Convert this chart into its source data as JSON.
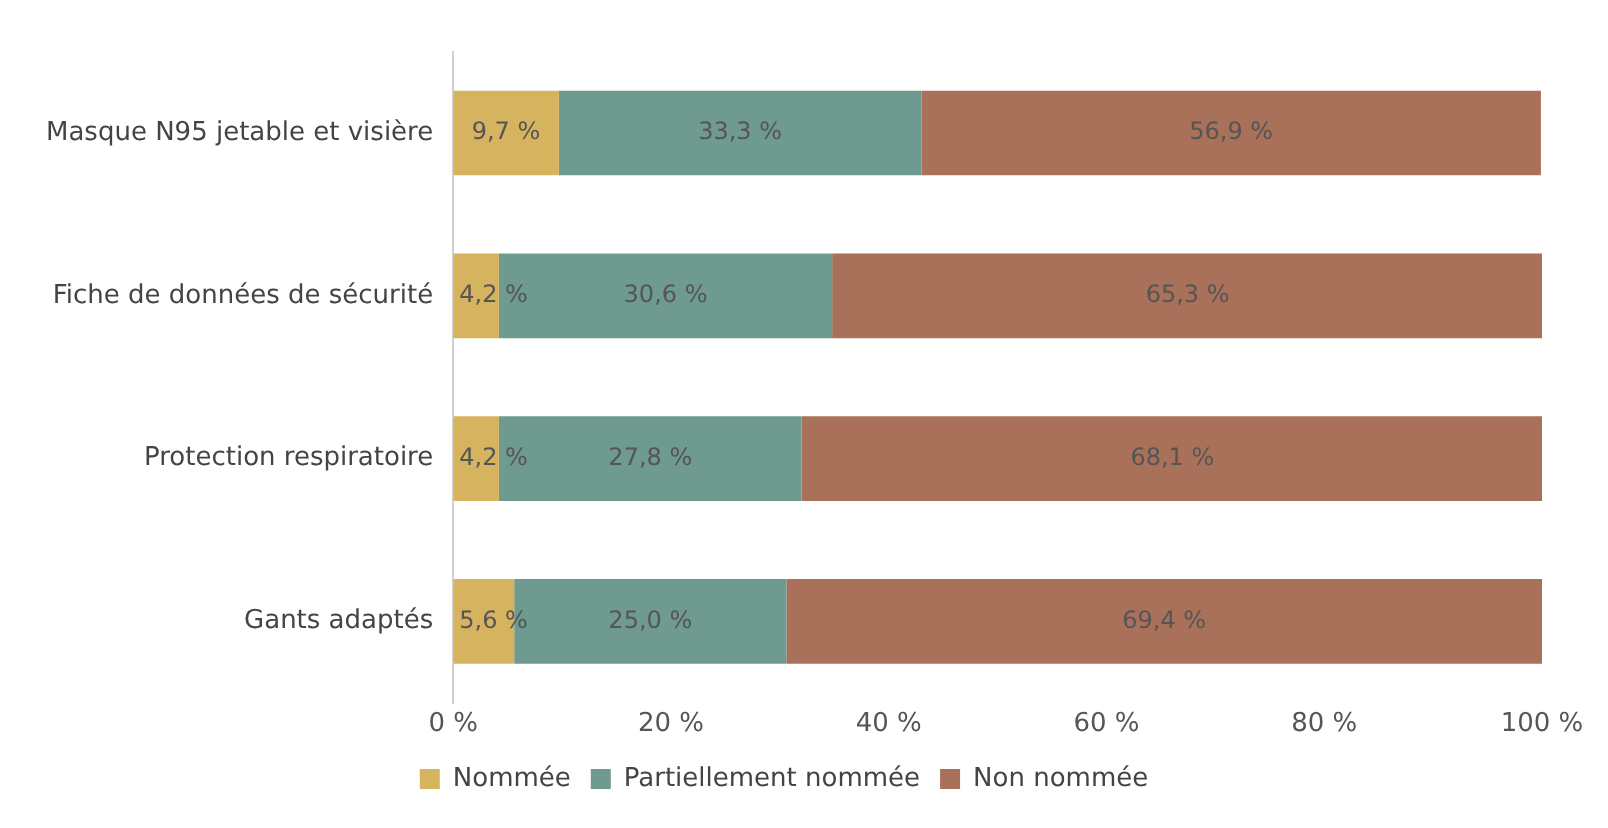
{
  "chart_data": {
    "type": "bar",
    "orientation": "horizontal",
    "stacked": true,
    "categories": [
      "Masque N95 jetable et visière",
      "Fiche de données de sécurité",
      "Protection respiratoire",
      "Gants adaptés"
    ],
    "series": [
      {
        "name": "Nommée",
        "color": "#d6b45f",
        "values": [
          9.7,
          4.2,
          4.2,
          5.6
        ],
        "value_labels": [
          "9,7 %",
          "4,2 %",
          "4,2 %",
          "5,6 %"
        ]
      },
      {
        "name": "Partiellement nommée",
        "color": "#6f9a8f",
        "values": [
          33.3,
          30.6,
          27.8,
          25.0
        ],
        "value_labels": [
          "33,3 %",
          "30,6 %",
          "27,8 %",
          "25,0 %"
        ]
      },
      {
        "name": "Non nommée",
        "color": "#a9705a",
        "values": [
          56.9,
          65.3,
          68.1,
          69.4
        ],
        "value_labels": [
          "56,9 %",
          "65,3 %",
          "68,1 %",
          "69,4 %"
        ]
      }
    ],
    "xlim": [
      0,
      100
    ],
    "xticks": [
      {
        "value": 0,
        "label": "0 %"
      },
      {
        "value": 20,
        "label": "20 %"
      },
      {
        "value": 40,
        "label": "40 %"
      },
      {
        "value": 60,
        "label": "60 %"
      },
      {
        "value": 80,
        "label": "80 %"
      },
      {
        "value": 100,
        "label": "100 %"
      }
    ],
    "grid": false,
    "legend": "bottom"
  }
}
